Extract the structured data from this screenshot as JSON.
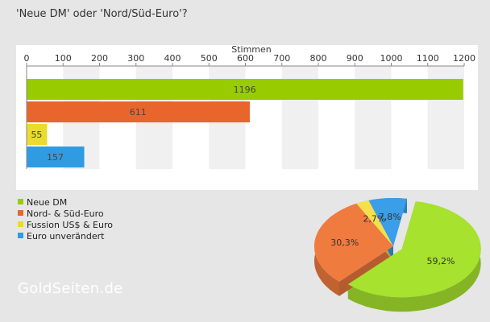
{
  "title": "'Neue DM' oder 'Nord/Süd-Euro'?",
  "watermark": "GoldSeiten.de",
  "chart_data": [
    {
      "type": "bar",
      "orientation": "horizontal",
      "xlabel": "Stimmen",
      "xlim": [
        0,
        1200
      ],
      "xticks": [
        0,
        100,
        200,
        300,
        400,
        500,
        600,
        700,
        800,
        900,
        1000,
        1100,
        1200
      ],
      "categories": [
        "Neue DM",
        "Nord- & Süd-Euro",
        "Fussion US$ & Euro",
        "Euro unverändert"
      ],
      "values": [
        1196,
        611,
        55,
        157
      ],
      "colors": [
        "#99cc00",
        "#e8662c",
        "#eadb2c",
        "#2f9be3"
      ]
    },
    {
      "type": "pie",
      "labels": [
        "Neue DM",
        "Nord- & Süd-Euro",
        "Fussion US$ & Euro",
        "Euro unverändert"
      ],
      "values": [
        59.2,
        30.3,
        2.7,
        7.8
      ],
      "value_labels": [
        "59,2%",
        "30,3%",
        "2,7%",
        "7,8%"
      ],
      "colors": [
        "#a6e22e",
        "#f07b3f",
        "#f4e04d",
        "#3a9ee8"
      ]
    }
  ],
  "legend": [
    {
      "label": "Neue DM",
      "color": "#99cc00"
    },
    {
      "label": "Nord- & Süd-Euro",
      "color": "#e8662c"
    },
    {
      "label": "Fussion US$ & Euro",
      "color": "#eadb2c"
    },
    {
      "label": "Euro unverändert",
      "color": "#2f9be3"
    }
  ]
}
